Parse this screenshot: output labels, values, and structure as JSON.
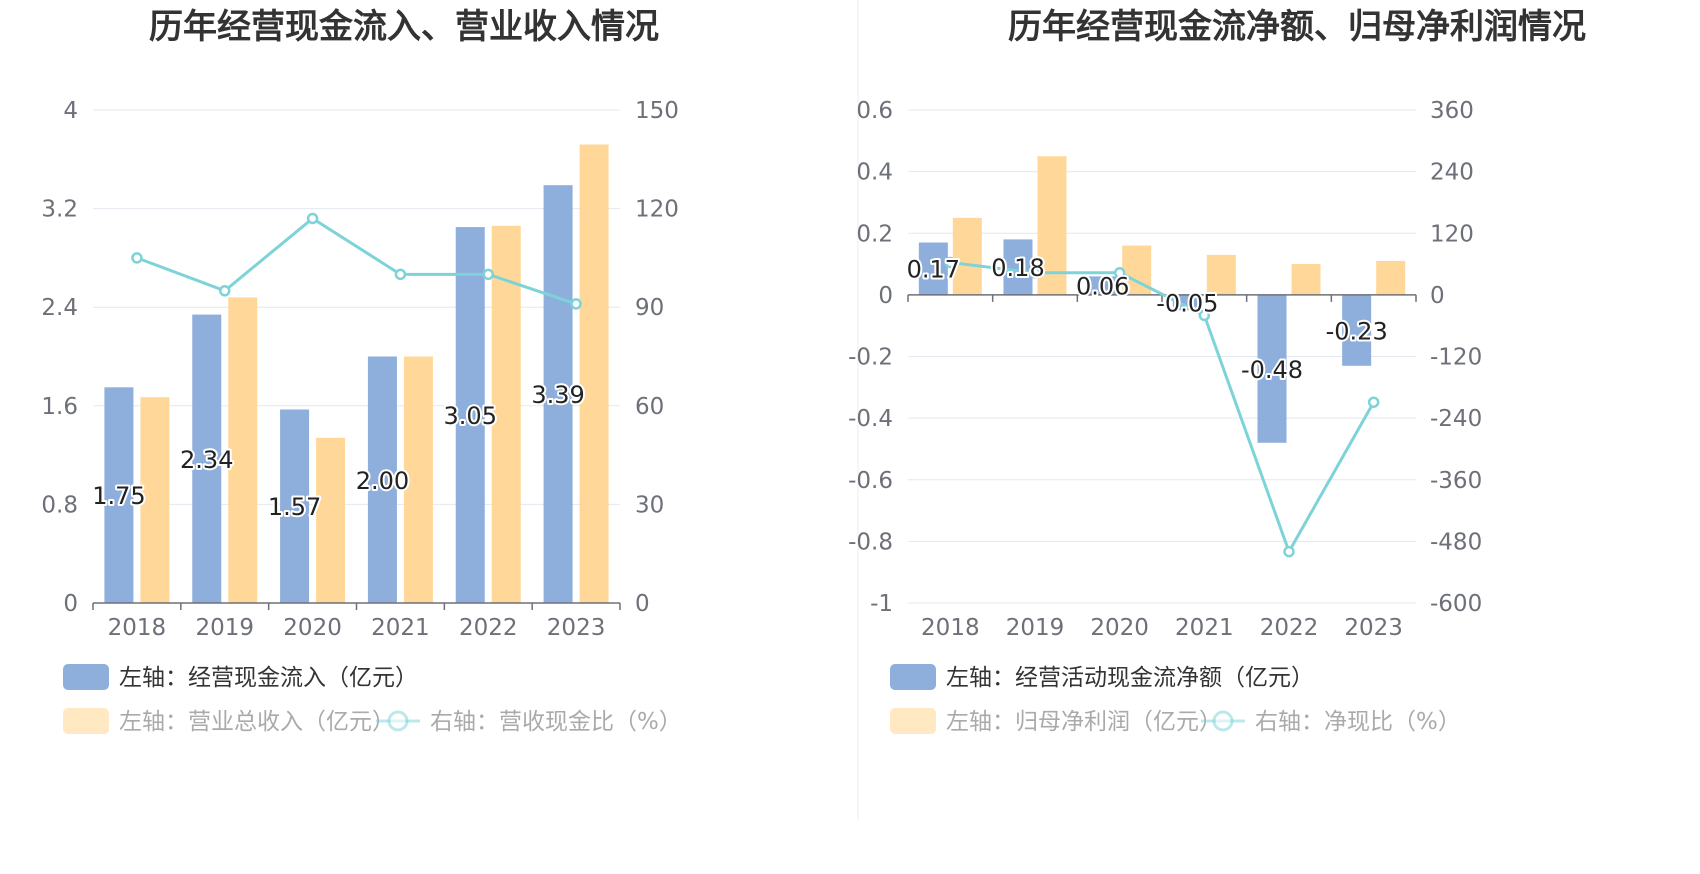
{
  "colors": {
    "bar_primary": "#8eaedc",
    "bar_secondary": "#ffd899",
    "line": "#7dd3d8",
    "grid": "#e3e7ef",
    "axis": "#6e7079",
    "title": "#333333",
    "legend_active": "#333333",
    "legend_faded": "#aaaaaa"
  },
  "chart_data": [
    {
      "type": "bar",
      "title": "历年经营现金流入、营业收入情况",
      "categories": [
        "2018",
        "2019",
        "2020",
        "2021",
        "2022",
        "2023"
      ],
      "y_left": {
        "ticks": [
          "0",
          "0.8",
          "1.6",
          "2.4",
          "3.2",
          "4"
        ],
        "range": [
          0,
          4
        ]
      },
      "y_right": {
        "ticks": [
          "0",
          "30",
          "60",
          "90",
          "120",
          "150"
        ],
        "range": [
          0,
          150
        ]
      },
      "series": [
        {
          "name": "左轴：经营现金流入（亿元）",
          "type": "bar",
          "axis": "left",
          "values": [
            1.75,
            2.34,
            1.57,
            2.0,
            3.05,
            3.39
          ],
          "labels": [
            "1.75",
            "2.34",
            "1.57",
            "2.00",
            "3.05",
            "3.39"
          ]
        },
        {
          "name": "左轴：营业总收入（亿元）",
          "type": "bar",
          "axis": "left",
          "values": [
            1.67,
            2.48,
            1.34,
            2.0,
            3.06,
            3.72
          ]
        },
        {
          "name": "右轴：营收现金比（%）",
          "type": "line",
          "axis": "right",
          "values": [
            105,
            95,
            117,
            100,
            100,
            91
          ]
        }
      ],
      "legend": [
        "左轴：经营现金流入（亿元）",
        "左轴：营业总收入（亿元）",
        "右轴：营收现金比（%）"
      ]
    },
    {
      "type": "bar",
      "title": "历年经营现金流净额、归母净利润情况",
      "categories": [
        "2018",
        "2019",
        "2020",
        "2021",
        "2022",
        "2023"
      ],
      "y_left": {
        "ticks": [
          "-1",
          "-0.8",
          "-0.6",
          "-0.4",
          "-0.2",
          "0",
          "0.2",
          "0.4",
          "0.6"
        ],
        "range": [
          -1,
          0.6
        ]
      },
      "y_right": {
        "ticks": [
          "-600",
          "-480",
          "-360",
          "-240",
          "-120",
          "0",
          "120",
          "240",
          "360"
        ],
        "range": [
          -600,
          360
        ]
      },
      "series": [
        {
          "name": "左轴：经营活动现金流净额（亿元）",
          "type": "bar",
          "axis": "left",
          "values": [
            0.17,
            0.18,
            0.06,
            -0.05,
            -0.48,
            -0.23
          ],
          "labels": [
            "0.17",
            "0.18",
            "0.06",
            "-0.05",
            "-0.48",
            "-0.23"
          ]
        },
        {
          "name": "左轴：归母净利润（亿元）",
          "type": "bar",
          "axis": "left",
          "values": [
            0.25,
            0.45,
            0.16,
            0.13,
            0.1,
            0.11
          ]
        },
        {
          "name": "右轴：净现比（%）",
          "type": "line",
          "axis": "right",
          "values": [
            63,
            43,
            43,
            -40,
            -500,
            -209
          ]
        }
      ],
      "legend": [
        "左轴：经营活动现金流净额（亿元）",
        "左轴：归母净利润（亿元）",
        "右轴：净现比（%）"
      ]
    }
  ]
}
